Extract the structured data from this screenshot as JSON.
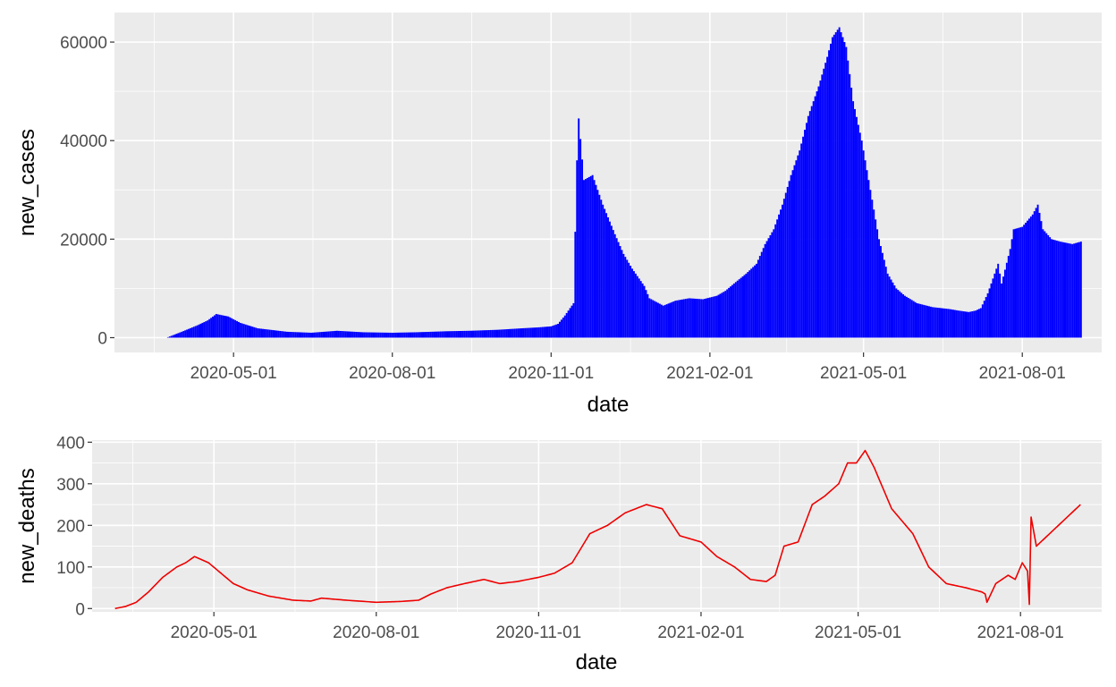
{
  "chart_data": [
    {
      "type": "bar",
      "xlabel": "date",
      "ylabel": "new_cases",
      "color": "#0000ff",
      "x_range": [
        "2020-02-22",
        "2021-09-16"
      ],
      "ylim": [
        -3000,
        66000
      ],
      "x_ticks": [
        "2020-05-01",
        "2020-08-01",
        "2020-11-01",
        "2021-02-01",
        "2021-05-01",
        "2021-08-01"
      ],
      "y_ticks": [
        0,
        20000,
        40000,
        60000
      ],
      "y_tick_labels": [
        "0",
        "20000",
        "40000",
        "60000"
      ],
      "grid": true,
      "series": [
        {
          "x": [
            "2020-03-24",
            "2020-04-01",
            "2020-04-10",
            "2020-04-16",
            "2020-04-21",
            "2020-04-28",
            "2020-05-05",
            "2020-05-15",
            "2020-06-01",
            "2020-06-15",
            "2020-06-30",
            "2020-07-15",
            "2020-08-01",
            "2020-08-15",
            "2020-09-01",
            "2020-09-15",
            "2020-10-01",
            "2020-10-15",
            "2020-10-25",
            "2020-11-01",
            "2020-11-05",
            "2020-11-09",
            "2020-11-14",
            "2020-11-16",
            "2020-11-17",
            "2020-11-20",
            "2020-11-25",
            "2020-12-01",
            "2020-12-08",
            "2020-12-13",
            "2020-12-18",
            "2020-12-25",
            "2020-12-28",
            "2021-01-05",
            "2021-01-12",
            "2021-01-20",
            "2021-01-28",
            "2021-02-05",
            "2021-02-10",
            "2021-02-15",
            "2021-02-22",
            "2021-02-28",
            "2021-03-05",
            "2021-03-10",
            "2021-03-15",
            "2021-03-20",
            "2021-03-25",
            "2021-03-30",
            "2021-04-05",
            "2021-04-10",
            "2021-04-13",
            "2021-04-17",
            "2021-04-21",
            "2021-04-25",
            "2021-04-30",
            "2021-05-05",
            "2021-05-10",
            "2021-05-15",
            "2021-05-20",
            "2021-05-25",
            "2021-06-01",
            "2021-06-10",
            "2021-06-20",
            "2021-06-25",
            "2021-07-01",
            "2021-07-05",
            "2021-07-08",
            "2021-07-12",
            "2021-07-18",
            "2021-07-20",
            "2021-07-25",
            "2021-07-27",
            "2021-08-01",
            "2021-08-07",
            "2021-08-10",
            "2021-08-13",
            "2021-08-18",
            "2021-08-23",
            "2021-08-30",
            "2021-09-04"
          ],
          "y": [
            100,
            1200,
            2500,
            3500,
            4800,
            4300,
            3000,
            1900,
            1200,
            1000,
            1400,
            1100,
            1000,
            1100,
            1300,
            1400,
            1600,
            1900,
            2100,
            2300,
            2800,
            4500,
            7000,
            36000,
            44500,
            32000,
            33000,
            27000,
            21000,
            17000,
            14000,
            10500,
            8000,
            6500,
            7500,
            8000,
            7800,
            8500,
            9500,
            11000,
            13000,
            15000,
            19000,
            22000,
            27000,
            33000,
            38000,
            45000,
            51000,
            57000,
            61000,
            63000,
            59000,
            48000,
            40000,
            30000,
            20000,
            13000,
            10000,
            8500,
            7000,
            6200,
            5800,
            5500,
            5200,
            5500,
            6000,
            9000,
            15000,
            11000,
            18000,
            22000,
            22500,
            25000,
            27000,
            22000,
            20000,
            19500,
            19000,
            19500
          ]
        }
      ]
    },
    {
      "type": "line",
      "xlabel": "date",
      "ylabel": "new_deaths",
      "color": "#ee0000",
      "x_range": [
        "2020-02-22",
        "2021-09-16"
      ],
      "ylim": [
        -8,
        405
      ],
      "x_ticks": [
        "2020-05-01",
        "2020-08-01",
        "2020-11-01",
        "2021-02-01",
        "2021-05-01",
        "2021-08-01"
      ],
      "y_ticks": [
        0,
        100,
        200,
        300,
        400
      ],
      "y_tick_labels": [
        "0",
        "100",
        "200",
        "300",
        "400"
      ],
      "grid": true,
      "series": [
        {
          "x": [
            "2020-03-06",
            "2020-03-12",
            "2020-03-18",
            "2020-03-25",
            "2020-04-02",
            "2020-04-10",
            "2020-04-15",
            "2020-04-20",
            "2020-04-28",
            "2020-05-05",
            "2020-05-12",
            "2020-05-20",
            "2020-06-01",
            "2020-06-15",
            "2020-06-25",
            "2020-07-01",
            "2020-07-15",
            "2020-08-01",
            "2020-08-15",
            "2020-08-25",
            "2020-09-01",
            "2020-09-10",
            "2020-09-20",
            "2020-10-01",
            "2020-10-10",
            "2020-10-20",
            "2020-11-01",
            "2020-11-10",
            "2020-11-20",
            "2020-11-30",
            "2020-12-10",
            "2020-12-20",
            "2021-01-01",
            "2021-01-10",
            "2021-01-20",
            "2021-02-01",
            "2021-02-10",
            "2021-02-20",
            "2021-03-01",
            "2021-03-10",
            "2021-03-15",
            "2021-03-20",
            "2021-03-28",
            "2021-04-05",
            "2021-04-12",
            "2021-04-20",
            "2021-04-25",
            "2021-04-30",
            "2021-05-05",
            "2021-05-10",
            "2021-05-20",
            "2021-06-01",
            "2021-06-10",
            "2021-06-20",
            "2021-07-01",
            "2021-07-10",
            "2021-07-12",
            "2021-07-13",
            "2021-07-18",
            "2021-07-25",
            "2021-07-29",
            "2021-08-02",
            "2021-08-05",
            "2021-08-06",
            "2021-08-07",
            "2021-08-10",
            "2021-08-15",
            "2021-08-20",
            "2021-08-25",
            "2021-08-30",
            "2021-09-04"
          ],
          "y": [
            0,
            5,
            15,
            40,
            75,
            100,
            110,
            125,
            110,
            85,
            60,
            45,
            30,
            20,
            18,
            25,
            20,
            15,
            17,
            20,
            35,
            50,
            60,
            70,
            60,
            65,
            75,
            85,
            110,
            180,
            200,
            230,
            250,
            240,
            175,
            160,
            125,
            100,
            70,
            65,
            80,
            150,
            160,
            250,
            270,
            300,
            350,
            350,
            380,
            340,
            240,
            180,
            100,
            60,
            50,
            40,
            35,
            15,
            60,
            80,
            70,
            110,
            90,
            10,
            220,
            150,
            170,
            190,
            210,
            230,
            250
          ]
        }
      ]
    }
  ]
}
